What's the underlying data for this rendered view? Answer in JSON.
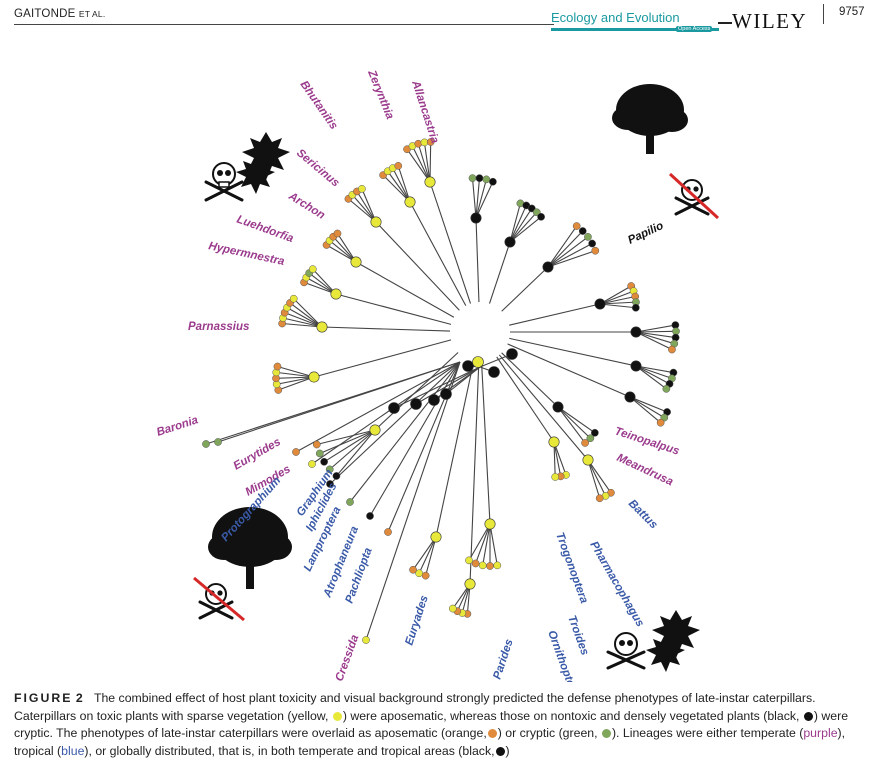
{
  "header": {
    "authors": "GAITONDE",
    "authors_suffix": "ET AL.",
    "journal": "Ecology and Evolution",
    "journal_badge": "Open Access",
    "publisher": "WILEY",
    "page_number": "9757"
  },
  "figure": {
    "temperate_color": "#9b3b8d",
    "tropical_color": "#3a5aa8",
    "global_color": "#111111",
    "state_colors": {
      "yellow_toxic_sparse": "#e8e83a",
      "black_nontoxic_dense": "#111111",
      "orange_aposematic": "#e08a3c",
      "green_cryptic": "#7fa65a"
    },
    "labels": [
      {
        "text": "Allancastria",
        "group": "temperate"
      },
      {
        "text": "Zerynthia",
        "group": "temperate"
      },
      {
        "text": "Bhutanitis",
        "group": "temperate"
      },
      {
        "text": "Sericinus",
        "group": "temperate"
      },
      {
        "text": "Archon",
        "group": "temperate"
      },
      {
        "text": "Luehdorfia",
        "group": "temperate"
      },
      {
        "text": "Hypermnestra",
        "group": "temperate"
      },
      {
        "text": "Parnassius",
        "group": "temperate"
      },
      {
        "text": "Baronia",
        "group": "temperate"
      },
      {
        "text": "Eurytides",
        "group": "temperate"
      },
      {
        "text": "Mimodes",
        "group": "temperate"
      },
      {
        "text": "Protographium",
        "group": "tropical"
      },
      {
        "text": "Graphium",
        "group": "tropical"
      },
      {
        "text": "Iphiclides",
        "group": "tropical"
      },
      {
        "text": "Lamproptera",
        "group": "tropical"
      },
      {
        "text": "Atrophaneura",
        "group": "tropical"
      },
      {
        "text": "Pachliopta",
        "group": "tropical"
      },
      {
        "text": "Cressida",
        "group": "temperate"
      },
      {
        "text": "Euryades",
        "group": "tropical"
      },
      {
        "text": "Parides",
        "group": "tropical"
      },
      {
        "text": "Ornithoptera",
        "group": "tropical"
      },
      {
        "text": "Troides",
        "group": "tropical"
      },
      {
        "text": "Trogonoptera",
        "group": "tropical"
      },
      {
        "text": "Pharmacophagus",
        "group": "tropical"
      },
      {
        "text": "Battus",
        "group": "tropical"
      },
      {
        "text": "Meandrusa",
        "group": "temperate"
      },
      {
        "text": "Teinopalpus",
        "group": "temperate"
      },
      {
        "text": "Papilio",
        "group": "global"
      }
    ]
  },
  "caption": {
    "label": "FIGURE",
    "number": "2",
    "parts": [
      {
        "text": "The combined effect of host plant toxicity and visual background strongly predicted the defense phenotypes of late-instar caterpillars. Caterpillars on toxic plants with sparse vegetation (yellow, ",
        "style": ""
      },
      {
        "dot": "#e8e83a"
      },
      {
        "text": ") were aposematic, whereas those on nontoxic and densely vegetated plants (black, ",
        "style": ""
      },
      {
        "dot": "#111111"
      },
      {
        "text": ") were cryptic. The phenotypes of late-instar caterpillars were overlaid as aposematic (orange,",
        "style": ""
      },
      {
        "dot": "#e08a3c"
      },
      {
        "text": ") or cryptic (green, ",
        "style": ""
      },
      {
        "dot": "#7fa65a"
      },
      {
        "text": "). Lineages were either temperate (",
        "style": ""
      },
      {
        "text": "purple",
        "style": "purple"
      },
      {
        "text": "), tropical (",
        "style": ""
      },
      {
        "text": "blue",
        "style": "blue"
      },
      {
        "text": "), or globally distributed, that is, in both temperate and tropical areas (black,",
        "style": ""
      },
      {
        "dot": "#111111"
      },
      {
        "text": ")",
        "style": ""
      }
    ]
  }
}
